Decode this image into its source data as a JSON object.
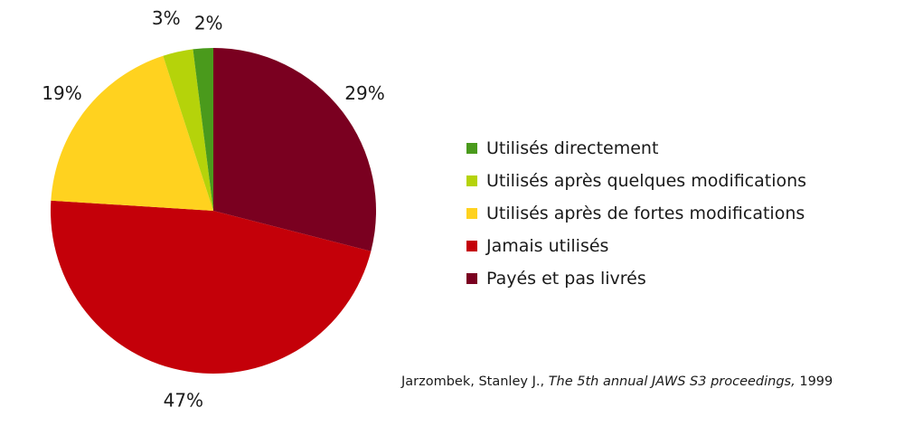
{
  "chart_data": {
    "type": "pie",
    "title": "",
    "slices": [
      {
        "label": "Utilisés directement",
        "value": 2,
        "value_label": "2%",
        "color": "#4a9a1c"
      },
      {
        "label": "Utilisés après quelques modifications",
        "value": 3,
        "value_label": "3%",
        "color": "#b5d30a"
      },
      {
        "label": "Utilisés après de fortes modifications",
        "value": 19,
        "value_label": "19%",
        "color": "#ffd21f"
      },
      {
        "label": "Jamais utilisés",
        "value": 47,
        "value_label": "47%",
        "color": "#c40009"
      },
      {
        "label": "Payés et pas livrés",
        "value": 29,
        "value_label": "29%",
        "color": "#7a0020"
      }
    ],
    "start_angle": "top",
    "direction": "clockwise",
    "legend_position": "right"
  },
  "citation": {
    "author": "Jarzombek, Stanley J.,",
    "title": "The 5th annual JAWS S3 proceedings,",
    "year": "1999"
  }
}
